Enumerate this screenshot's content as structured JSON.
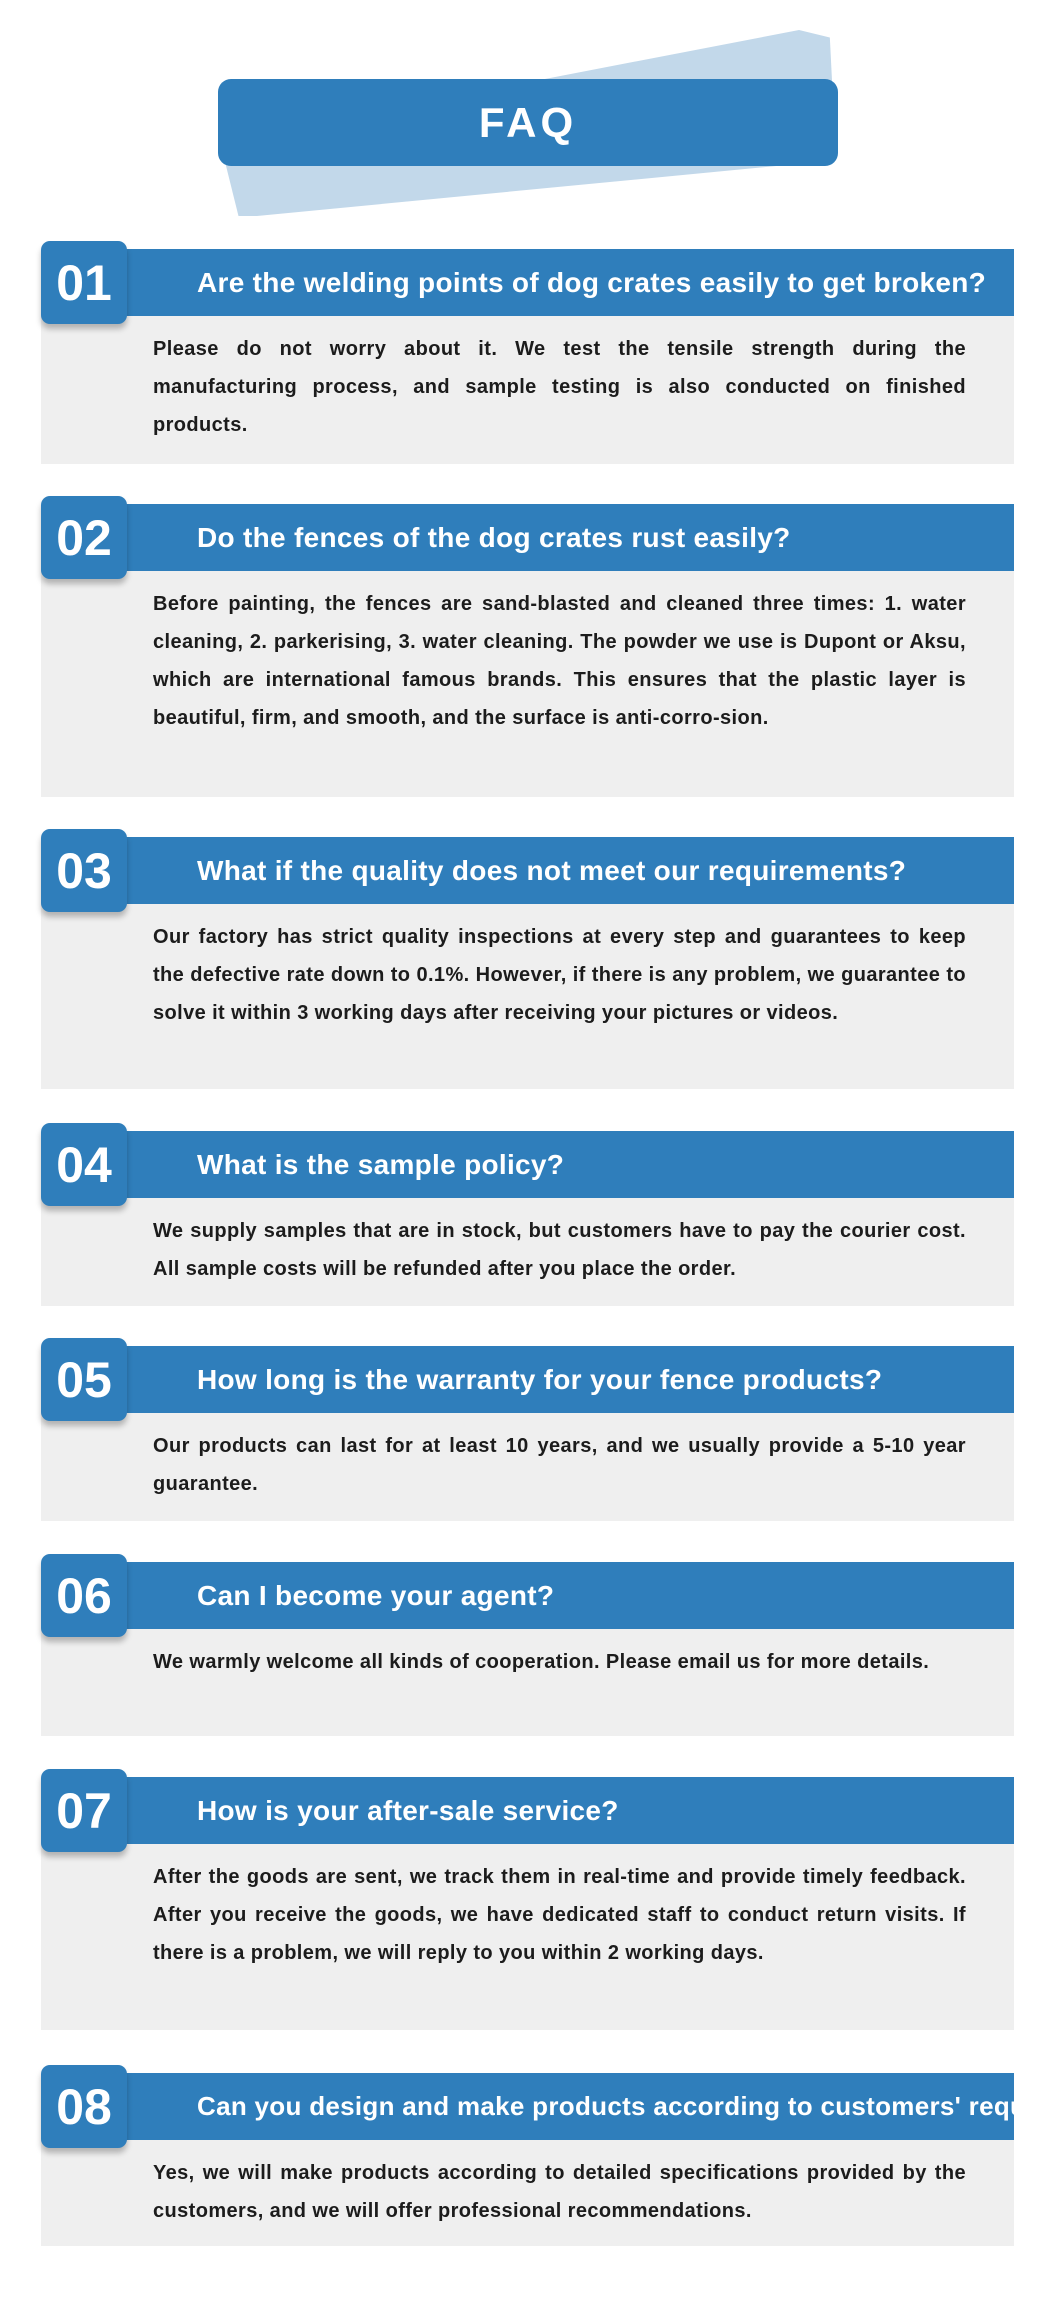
{
  "header": {
    "title": "FAQ"
  },
  "colors": {
    "accent": "#2f7ebb",
    "accent_light": "#c2d8ea",
    "answer_bg": "#efefef"
  },
  "faqs": [
    {
      "number": "01",
      "question": "Are the welding points of dog crates easily to get broken?",
      "answer": "Please do not worry about it. We test the tensile strength during the manufacturing process, and sample testing is also conducted on finished products."
    },
    {
      "number": "02",
      "question": "Do the fences of the dog crates rust easily?",
      "answer": "Before painting, the fences are sand-blasted and cleaned three times: 1. water cleaning, 2. parkerising, 3. water cleaning. The powder we use is Dupont or Aksu, which are international famous brands. This ensures that the plastic layer is beautiful, firm, and smooth, and the surface is anti-corro-sion."
    },
    {
      "number": "03",
      "question": "What if the quality does not meet our requirements?",
      "answer": "Our factory has strict quality inspections at every step and guarantees to keep the defective rate down to 0.1%. However, if there is any problem, we guarantee to solve it within 3 working days after receiving your pictures or videos."
    },
    {
      "number": "04",
      "question": "What is the sample policy?",
      "answer": "We supply samples that are in stock, but customers have to pay the courier cost. All sample costs will be refunded after you place the order."
    },
    {
      "number": "05",
      "question": "How long is the warranty for your fence products?",
      "answer": "Our products can last for at least 10 years, and we usually provide a 5-10 year guarantee."
    },
    {
      "number": "06",
      "question": "Can I become your agent?",
      "answer": "We warmly welcome all kinds of cooperation. Please email us for more details."
    },
    {
      "number": "07",
      "question": "How is your after-sale service?",
      "answer": "After the goods are sent, we track them in real-time and provide timely feedback. After you receive the goods, we have dedicated staff to conduct return visits. If there is a problem, we will reply to you within 2 working days."
    },
    {
      "number": "08",
      "question": "Can you design and make products according to customers' requests?",
      "answer": "Yes, we will make products according to detailed specifications provided by the customers, and we will offer professional recommendations."
    }
  ]
}
